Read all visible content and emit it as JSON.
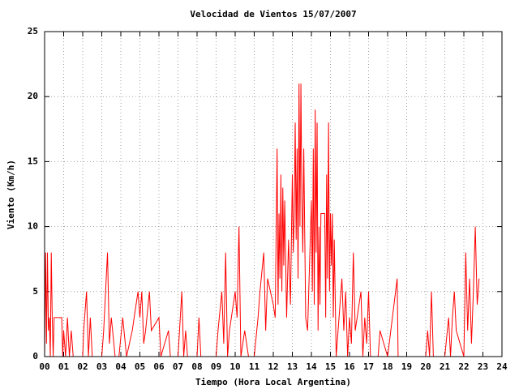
{
  "chart_data": {
    "type": "line",
    "title": "Velocidad de Vientos 15/07/2007",
    "xlabel": "Tiempo (Hora Local Argentina)",
    "ylabel": "Viento (Km/h)",
    "color": "#ff0000",
    "grid": true,
    "xlim": [
      0,
      24
    ],
    "xticks": [
      {
        "value": 0,
        "label": "00"
      },
      {
        "value": 1,
        "label": "01"
      },
      {
        "value": 2,
        "label": "02"
      },
      {
        "value": 3,
        "label": "03"
      },
      {
        "value": 4,
        "label": "04"
      },
      {
        "value": 5,
        "label": "05"
      },
      {
        "value": 6,
        "label": "06"
      },
      {
        "value": 7,
        "label": "07"
      },
      {
        "value": 8,
        "label": "08"
      },
      {
        "value": 9,
        "label": "09"
      },
      10,
      11,
      12,
      13,
      14,
      15,
      16,
      17,
      18,
      19,
      20,
      21,
      22,
      23,
      24
    ],
    "ylim": [
      0,
      25
    ],
    "yticks": [
      0,
      5,
      10,
      15,
      20,
      25
    ],
    "x": [
      0.0,
      0.05,
      0.1,
      0.15,
      0.2,
      0.25,
      0.3,
      0.35,
      0.4,
      0.45,
      0.5,
      0.9,
      0.95,
      1.0,
      1.1,
      1.2,
      1.3,
      1.4,
      1.5,
      2.0,
      2.05,
      2.2,
      2.3,
      2.4,
      2.5,
      3.0,
      3.1,
      3.3,
      3.4,
      3.5,
      3.7,
      3.9,
      4.1,
      4.3,
      4.6,
      4.9,
      5.0,
      5.1,
      5.2,
      5.3,
      5.5,
      5.6,
      6.0,
      6.1,
      6.5,
      6.6,
      7.0,
      7.2,
      7.3,
      7.4,
      7.5,
      8.0,
      8.1,
      8.2,
      9.0,
      9.1,
      9.3,
      9.4,
      9.5,
      9.6,
      9.7,
      10.0,
      10.1,
      10.2,
      10.3,
      10.5,
      10.7,
      11.0,
      11.2,
      11.3,
      11.5,
      11.6,
      11.7,
      12.0,
      12.1,
      12.2,
      12.25,
      12.3,
      12.35,
      12.4,
      12.45,
      12.5,
      12.55,
      12.6,
      12.7,
      12.8,
      12.9,
      13.0,
      13.05,
      13.1,
      13.15,
      13.2,
      13.25,
      13.3,
      13.35,
      13.4,
      13.45,
      13.5,
      13.55,
      13.6,
      13.7,
      13.8,
      13.9,
      14.0,
      14.05,
      14.1,
      14.15,
      14.2,
      14.25,
      14.3,
      14.35,
      14.4,
      14.45,
      14.5,
      14.6,
      14.7,
      14.75,
      14.8,
      14.85,
      14.9,
      14.95,
      15.0,
      15.05,
      15.1,
      15.15,
      15.2,
      15.3,
      15.4,
      15.5,
      15.6,
      15.7,
      15.8,
      15.9,
      16.0,
      16.1,
      16.2,
      16.3,
      16.5,
      16.6,
      16.7,
      16.8,
      16.9,
      17.0,
      17.1,
      17.5,
      17.6,
      18.0,
      18.5,
      18.55,
      19.0,
      20.0,
      20.1,
      20.2,
      20.3,
      20.4,
      21.0,
      21.2,
      21.3,
      21.4,
      21.5,
      21.6,
      22.0,
      22.1,
      22.2,
      22.3,
      22.4,
      22.5,
      22.6,
      22.7,
      22.8
    ],
    "values": [
      0,
      8,
      1,
      8,
      2,
      3,
      0,
      8,
      3,
      0,
      3,
      3,
      0,
      2,
      0,
      3,
      0,
      2,
      0,
      0,
      2,
      5,
      0,
      3,
      0,
      0,
      2,
      8,
      1,
      3,
      0,
      0,
      3,
      0,
      2,
      5,
      3,
      5,
      1,
      2,
      5,
      2,
      3,
      0,
      2,
      0,
      0,
      5,
      0,
      2,
      0,
      0,
      3,
      0,
      0,
      2,
      5,
      1,
      8,
      0,
      2,
      5,
      3,
      10,
      0,
      2,
      0,
      0,
      3,
      5,
      8,
      2,
      6,
      4,
      3,
      16,
      4,
      11,
      6,
      14,
      5,
      13,
      7,
      12,
      3,
      9,
      4,
      14,
      8,
      11,
      18,
      9,
      16,
      6,
      21,
      10,
      21,
      12,
      8,
      16,
      3,
      2,
      7,
      12,
      5,
      16,
      4,
      19,
      8,
      18,
      2,
      10,
      4,
      11,
      11,
      11,
      3,
      14,
      6,
      18,
      5,
      11,
      7,
      11,
      3,
      9,
      0,
      2,
      4,
      6,
      2,
      5,
      0,
      3,
      1,
      8,
      2,
      4,
      5,
      0,
      3,
      1,
      5,
      0,
      0,
      2,
      0,
      6,
      0,
      0,
      0,
      2,
      0,
      5,
      0,
      0,
      3,
      0,
      3,
      5,
      2,
      0,
      8,
      2,
      6,
      1,
      5,
      10,
      4,
      6
    ]
  }
}
